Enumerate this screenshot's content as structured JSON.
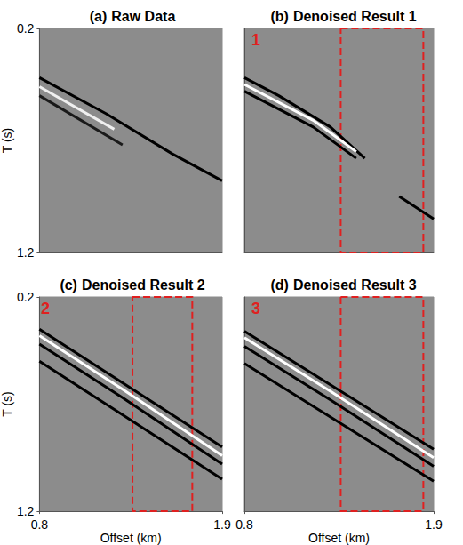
{
  "chart_data": [
    {
      "type": "line",
      "label": "(a)",
      "title": "Raw Data",
      "ylabel": "T (s)",
      "xlim": [
        0.8,
        1.9
      ],
      "ylim": [
        0.2,
        1.2
      ],
      "yticks": [
        0.2,
        1.2
      ],
      "tick_labels": "y",
      "series": [
        {
          "color": "#000000",
          "x": [
            0.8,
            1.2,
            1.6,
            1.9
          ],
          "values": [
            0.42,
            0.58,
            0.76,
            0.88
          ]
        },
        {
          "color": "#1a1a1a",
          "x": [
            0.8,
            1.3
          ],
          "values": [
            0.5,
            0.72
          ]
        },
        {
          "color": "#f0f0f0",
          "x": [
            0.8,
            1.25
          ],
          "values": [
            0.46,
            0.65
          ]
        }
      ]
    },
    {
      "type": "line",
      "label": "(b)",
      "title": "Denoised Result 1",
      "annotation": "1",
      "xlim": [
        0.8,
        1.9
      ],
      "ylim": [
        0.2,
        1.2
      ],
      "tick_labels": false,
      "highlight_x": [
        1.36,
        1.84
      ],
      "series": [
        {
          "color": "#000000",
          "x": [
            0.8,
            1.0,
            1.3,
            1.5
          ],
          "values": [
            0.42,
            0.5,
            0.64,
            0.78
          ]
        },
        {
          "color": "#000000",
          "x": [
            0.8,
            1.2,
            1.45
          ],
          "values": [
            0.48,
            0.64,
            0.78
          ]
        },
        {
          "color": "#ffffff",
          "x": [
            0.8,
            1.2,
            1.45
          ],
          "values": [
            0.45,
            0.61,
            0.75
          ]
        },
        {
          "color": "#000000",
          "x": [
            1.7,
            1.9
          ],
          "values": [
            0.95,
            1.05
          ]
        }
      ]
    },
    {
      "type": "line",
      "label": "(c)",
      "title": "Denoised Result 2",
      "annotation": "2",
      "xlabel": "Offset (km)",
      "ylabel": "T (s)",
      "xlim": [
        0.8,
        1.9
      ],
      "ylim": [
        0.2,
        1.2
      ],
      "xticks": [
        0.8,
        1.9
      ],
      "yticks": [
        0.2,
        1.2
      ],
      "highlight_x": [
        1.36,
        1.72
      ],
      "series": [
        {
          "color": "#000000",
          "x": [
            0.8,
            1.3,
            1.9
          ],
          "values": [
            0.35,
            0.6,
            0.9
          ]
        },
        {
          "color": "#ffffff",
          "x": [
            0.8,
            1.3,
            1.9
          ],
          "values": [
            0.38,
            0.63,
            0.94
          ]
        },
        {
          "color": "#000000",
          "x": [
            0.8,
            1.3,
            1.9
          ],
          "values": [
            0.42,
            0.67,
            0.98
          ]
        },
        {
          "color": "#000000",
          "x": [
            0.8,
            1.3,
            1.9
          ],
          "values": [
            0.5,
            0.75,
            1.05
          ]
        }
      ]
    },
    {
      "type": "line",
      "label": "(d)",
      "title": "Denoised Result 3",
      "annotation": "3",
      "xlabel": "Offset (km)",
      "xlim": [
        0.8,
        1.9
      ],
      "ylim": [
        0.2,
        1.2
      ],
      "xticks": [
        0.8,
        1.9
      ],
      "tick_labels": "x",
      "highlight_x": [
        1.36,
        1.84
      ],
      "series": [
        {
          "color": "#000000",
          "x": [
            0.8,
            1.3,
            1.9
          ],
          "values": [
            0.36,
            0.61,
            0.91
          ]
        },
        {
          "color": "#ffffff",
          "x": [
            0.8,
            1.3,
            1.9
          ],
          "values": [
            0.39,
            0.64,
            0.95
          ]
        },
        {
          "color": "#000000",
          "x": [
            0.8,
            1.3,
            1.9
          ],
          "values": [
            0.43,
            0.68,
            0.99
          ]
        },
        {
          "color": "#000000",
          "x": [
            0.8,
            1.3,
            1.9
          ],
          "values": [
            0.51,
            0.76,
            1.06
          ]
        }
      ]
    }
  ]
}
